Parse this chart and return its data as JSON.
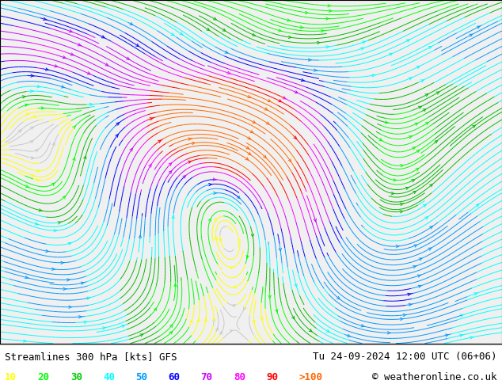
{
  "title_left": "Streamlines 300 hPa [kts] GFS",
  "title_right": "Tu 24-09-2024 12:00 UTC (06+06)",
  "copyright": "© weatheronline.co.uk",
  "legend_values": [
    "10",
    "20",
    "30",
    "40",
    "50",
    "60",
    "70",
    "80",
    "90",
    ">100"
  ],
  "legend_colors": [
    "#ffff00",
    "#00ff00",
    "#00cc00",
    "#00ffff",
    "#0099ff",
    "#0000ff",
    "#cc00ff",
    "#ff00ff",
    "#ff0000",
    "#ff6600"
  ],
  "speed_levels": [
    0,
    10,
    20,
    30,
    40,
    50,
    60,
    70,
    80,
    90,
    100,
    200
  ],
  "speed_colors": [
    "#c8c8c8",
    "#ffff00",
    "#00ff00",
    "#00bb00",
    "#00ffff",
    "#0099ff",
    "#0000ff",
    "#cc00ff",
    "#ff00ff",
    "#ff0000",
    "#ff6600"
  ],
  "ocean_color": "#f0f0f0",
  "land_color": "#ccddaa",
  "border_color": "#888888",
  "fig_width": 6.34,
  "fig_height": 4.9,
  "dpi": 100,
  "bottom_bar_color": "#ffffff",
  "text_color": "#000000",
  "title_fontsize": 9,
  "legend_fontsize": 9,
  "map_extent": [
    -179,
    0,
    10,
    85
  ],
  "stream_density": [
    3.5,
    3.0
  ],
  "stream_linewidth": 0.7,
  "stream_arrowsize": 0.6
}
